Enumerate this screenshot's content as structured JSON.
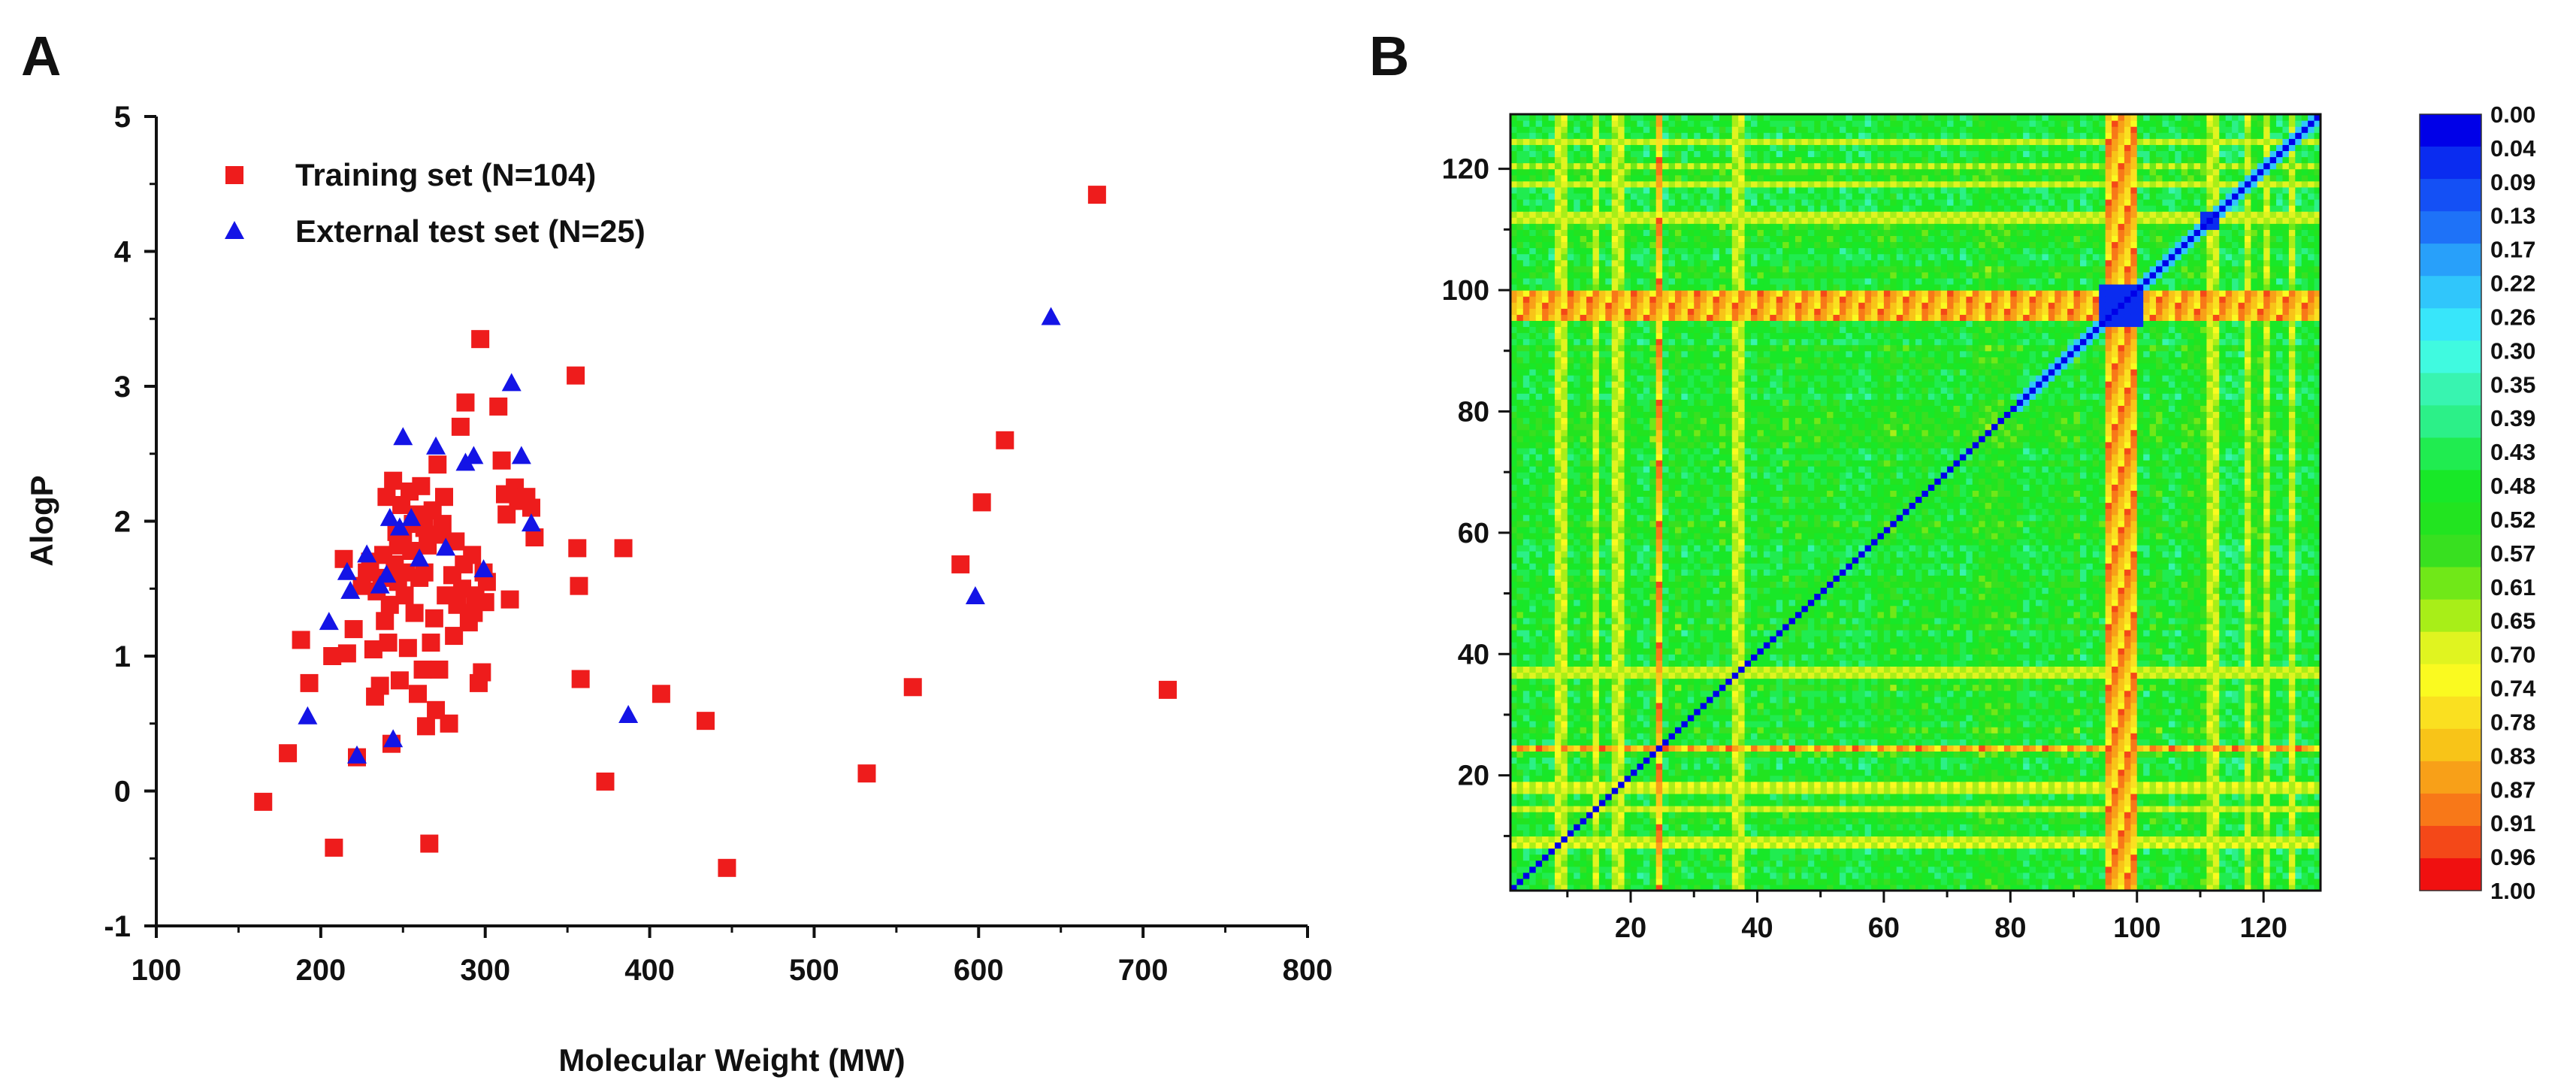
{
  "panels": {
    "a_label": "A",
    "b_label": "B"
  },
  "chart_data": [
    {
      "type": "scatter",
      "panel": "A",
      "xlabel": "Molecular Weight (MW)",
      "ylabel": "AlogP",
      "xlim": [
        100,
        800
      ],
      "ylim": [
        -1,
        5
      ],
      "x_ticks": [
        "100",
        "200",
        "300",
        "400",
        "500",
        "600",
        "700",
        "800"
      ],
      "y_ticks": [
        "-1",
        "0",
        "1",
        "2",
        "3",
        "4",
        "5"
      ],
      "grid": false,
      "legend_position": "top-left",
      "series": [
        {
          "name": "Training set (N=104)",
          "marker": "square",
          "color": "#ee1c1c",
          "points": [
            [
              165,
              -0.08
            ],
            [
              180,
              0.28
            ],
            [
              188,
              1.12
            ],
            [
              193,
              0.8
            ],
            [
              207,
              1.0
            ],
            [
              208,
              -0.42
            ],
            [
              214,
              1.72
            ],
            [
              216,
              1.02
            ],
            [
              220,
              1.2
            ],
            [
              222,
              0.25
            ],
            [
              225,
              1.52
            ],
            [
              228,
              1.62
            ],
            [
              230,
              1.7
            ],
            [
              232,
              1.05
            ],
            [
              234,
              1.48
            ],
            [
              236,
              0.78
            ],
            [
              237,
              1.58
            ],
            [
              238,
              1.75
            ],
            [
              240,
              2.18
            ],
            [
              241,
              1.1
            ],
            [
              242,
              1.38
            ],
            [
              243,
              0.35
            ],
            [
              244,
              2.3
            ],
            [
              245,
              1.68
            ],
            [
              246,
              1.92
            ],
            [
              247,
              1.55
            ],
            [
              248,
              0.82
            ],
            [
              249,
              2.12
            ],
            [
              250,
              1.88
            ],
            [
              251,
              1.45
            ],
            [
              252,
              1.62
            ],
            [
              254,
              2.22
            ],
            [
              255,
              1.78
            ],
            [
              256,
              1.98
            ],
            [
              257,
              1.32
            ],
            [
              258,
              2.05
            ],
            [
              260,
              1.58
            ],
            [
              261,
              2.26
            ],
            [
              262,
              0.9
            ],
            [
              263,
              1.62
            ],
            [
              264,
              0.48
            ],
            [
              265,
              1.82
            ],
            [
              266,
              -0.39
            ],
            [
              268,
              2.08
            ],
            [
              269,
              1.28
            ],
            [
              270,
              0.6
            ],
            [
              271,
              2.42
            ],
            [
              272,
              0.9
            ],
            [
              274,
              1.98
            ],
            [
              275,
              2.18
            ],
            [
              276,
              1.45
            ],
            [
              278,
              0.5
            ],
            [
              280,
              1.6
            ],
            [
              282,
              1.85
            ],
            [
              283,
              1.38
            ],
            [
              285,
              2.7
            ],
            [
              286,
              1.5
            ],
            [
              288,
              2.88
            ],
            [
              290,
              1.25
            ],
            [
              292,
              1.75
            ],
            [
              294,
              1.45
            ],
            [
              296,
              0.8
            ],
            [
              297,
              3.35
            ],
            [
              298,
              0.88
            ],
            [
              300,
              1.4
            ],
            [
              301,
              1.55
            ],
            [
              308,
              2.85
            ],
            [
              310,
              2.45
            ],
            [
              312,
              2.2
            ],
            [
              313,
              2.05
            ],
            [
              315,
              1.42
            ],
            [
              318,
              2.25
            ],
            [
              320,
              2.15
            ],
            [
              325,
              2.18
            ],
            [
              328,
              2.1
            ],
            [
              330,
              1.88
            ],
            [
              355,
              3.08
            ],
            [
              356,
              1.8
            ],
            [
              357,
              1.52
            ],
            [
              358,
              0.83
            ],
            [
              373,
              0.07
            ],
            [
              384,
              1.8
            ],
            [
              407,
              0.72
            ],
            [
              434,
              0.52
            ],
            [
              447,
              -0.57
            ],
            [
              532,
              0.13
            ],
            [
              560,
              0.77
            ],
            [
              589,
              1.68
            ],
            [
              602,
              2.14
            ],
            [
              616,
              2.6
            ],
            [
              672,
              4.42
            ],
            [
              715,
              0.75
            ],
            [
              233,
              0.7
            ],
            [
              239,
              1.26
            ],
            [
              247,
              1.82
            ],
            [
              253,
              1.06
            ],
            [
              259,
              0.72
            ],
            [
              263,
              1.95
            ],
            [
              267,
              1.1
            ],
            [
              273,
              1.9
            ],
            [
              281,
              1.15
            ],
            [
              287,
              1.68
            ],
            [
              293,
              1.32
            ],
            [
              299,
              1.62
            ]
          ]
        },
        {
          "name": "External test set (N=25)",
          "marker": "triangle",
          "color": "#1414e6",
          "points": [
            [
              192,
              0.55
            ],
            [
              205,
              1.25
            ],
            [
              216,
              1.62
            ],
            [
              218,
              1.48
            ],
            [
              222,
              0.26
            ],
            [
              228,
              1.75
            ],
            [
              236,
              1.52
            ],
            [
              242,
              2.02
            ],
            [
              244,
              0.38
            ],
            [
              248,
              1.95
            ],
            [
              250,
              2.62
            ],
            [
              255,
              2.02
            ],
            [
              260,
              1.72
            ],
            [
              270,
              2.55
            ],
            [
              276,
              1.8
            ],
            [
              288,
              2.43
            ],
            [
              293,
              2.48
            ],
            [
              299,
              1.64
            ],
            [
              316,
              3.02
            ],
            [
              322,
              2.48
            ],
            [
              328,
              1.98
            ],
            [
              387,
              0.56
            ],
            [
              598,
              1.44
            ],
            [
              644,
              3.51
            ],
            [
              240,
              1.6
            ]
          ]
        }
      ]
    },
    {
      "type": "heatmap",
      "panel": "B",
      "xlim": [
        1,
        129
      ],
      "ylim": [
        1,
        129
      ],
      "x_ticks": [
        "20",
        "40",
        "60",
        "80",
        "100",
        "120"
      ],
      "y_ticks": [
        "20",
        "40",
        "60",
        "80",
        "100",
        "120"
      ],
      "description_of_values": "symmetric pairwise similarity-distance matrix, diagonal = 0",
      "special_rows_high": [
        24,
        95,
        96,
        97,
        98,
        99
      ],
      "special_rows_mid": [
        8,
        9,
        14,
        17,
        18,
        36,
        37,
        111,
        112,
        117,
        120,
        124
      ],
      "blocks_low": [
        [
          94,
          100
        ],
        [
          110,
          112
        ]
      ],
      "colorbar": {
        "position": "right",
        "labels": [
          "0.00",
          "0.04",
          "0.09",
          "0.13",
          "0.17",
          "0.22",
          "0.26",
          "0.30",
          "0.35",
          "0.39",
          "0.43",
          "0.48",
          "0.52",
          "0.57",
          "0.61",
          "0.65",
          "0.70",
          "0.74",
          "0.78",
          "0.83",
          "0.87",
          "0.91",
          "0.96",
          "1.00"
        ],
        "colors": [
          "#0000e8",
          "#0a2cf0",
          "#1450f5",
          "#1e72f8",
          "#28a0fa",
          "#30c6fb",
          "#38e6fa",
          "#40fae0",
          "#38f4b0",
          "#2cf088",
          "#20ec50",
          "#18e828",
          "#22e420",
          "#38e020",
          "#70e818",
          "#a8ee18",
          "#e0f420",
          "#fafa20",
          "#fae020",
          "#f8c418",
          "#f8a018",
          "#f87818",
          "#f44818",
          "#f01010"
        ]
      }
    }
  ]
}
